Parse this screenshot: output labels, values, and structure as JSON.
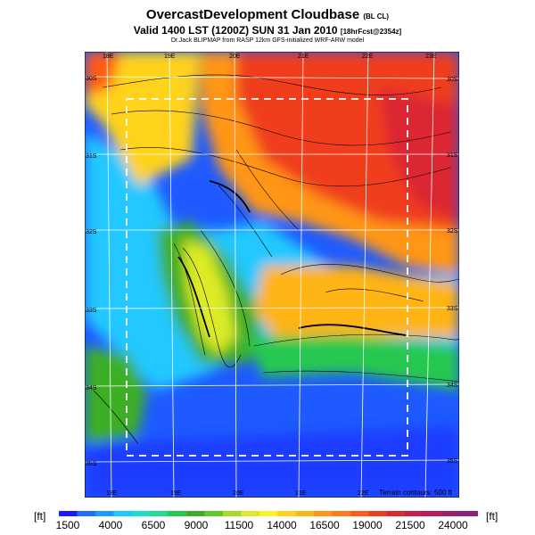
{
  "header": {
    "title": "OvercastDevelopment Cloudbase",
    "title_suffix": "(BL CL)",
    "valid_line": "Valid 1400 LST (1200Z) SUN 31 Jan 2010",
    "valid_suffix": "[18hrFcst@2354z]",
    "credit": "Dr.Jack BLIPMAP from RASP 12km GFS-initialized WRF-ARW model"
  },
  "map": {
    "lon_labels_top": [
      "18E",
      "19E",
      "20E",
      "21E",
      "22E",
      "23E"
    ],
    "lon_labels_bottom": [
      "18E",
      "19E",
      "20E",
      "21E",
      "22E"
    ],
    "lat_labels_left": [
      "30S",
      "31S",
      "32S",
      "33S",
      "34S",
      "35S"
    ],
    "lat_labels_right": [
      "30S",
      "31S",
      "32S",
      "33S",
      "34S",
      "35S"
    ],
    "terrain_note": "Terrain contours: 500 ft"
  },
  "colorbar": {
    "unit_left": "[ft]",
    "unit_right": "[ft]",
    "tick_labels": [
      "1500",
      "4000",
      "6500",
      "9000",
      "11500",
      "14000",
      "16500",
      "19000",
      "21500",
      "24000"
    ],
    "colors": [
      "#1a1aff",
      "#1e6cff",
      "#1e9bff",
      "#19c8ff",
      "#19e0c8",
      "#1edc8c",
      "#28c850",
      "#3caf28",
      "#64c828",
      "#a0dc28",
      "#dceb28",
      "#fff028",
      "#ffd21e",
      "#ffb419",
      "#ff9619",
      "#ff7819",
      "#ff5a19",
      "#f03c1e",
      "#dc2832",
      "#c81e46",
      "#b41e5a",
      "#a01e6e",
      "#8c1e82"
    ]
  }
}
